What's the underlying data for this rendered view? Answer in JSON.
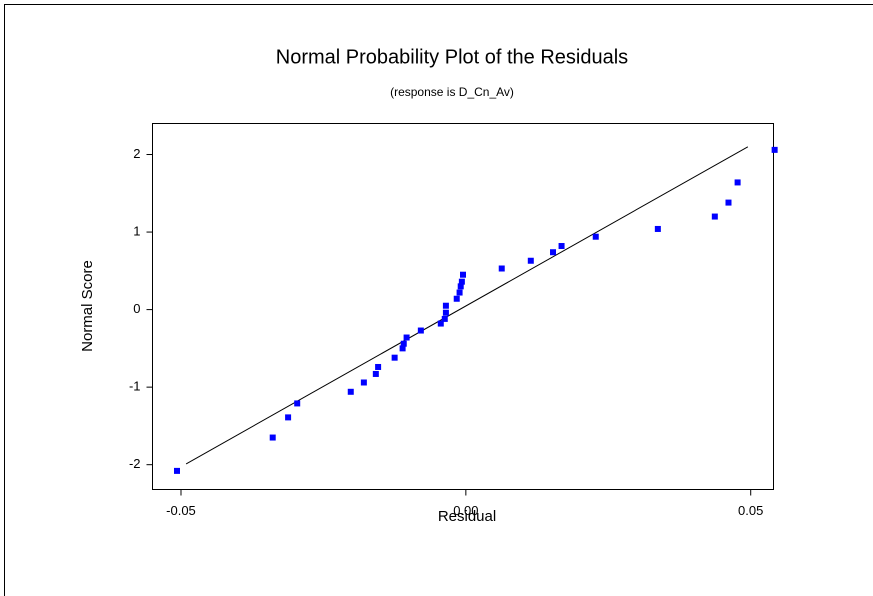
{
  "chart_data": {
    "type": "scatter",
    "title": "Normal Probability Plot of the Residuals",
    "subtitle": "(response is D_Cn_Av)",
    "x_label": "Residual",
    "y_label": "Normal Score",
    "xlim": [
      -0.055,
      0.054
    ],
    "ylim": [
      -2.32,
      2.4
    ],
    "xticks": [
      -0.05,
      {
        "value": 0,
        "label": "0.00"
      },
      0.05
    ],
    "yticks": [
      -2,
      -1,
      0,
      1,
      2
    ],
    "grid": false,
    "series": [
      {
        "color": "#0000ff",
        "x": [
          -0.0507,
          -0.0339,
          -0.0312,
          -0.0296,
          -0.0202,
          -0.0179,
          -0.0158,
          -0.0154,
          -0.0125,
          -0.0111,
          -0.0109,
          -0.0104,
          -0.0079,
          -0.0044,
          -0.0037,
          -0.0035,
          -0.0035,
          -0.0016,
          -0.0011,
          -0.0009,
          -0.0007,
          -0.0005,
          0.0063,
          0.0114,
          0.0153,
          0.0168,
          0.0228,
          0.0337,
          0.0437,
          0.0461,
          0.0477,
          0.0542
        ],
        "values": [
          -2.08,
          -1.65,
          -1.39,
          -1.21,
          -1.06,
          -0.94,
          -0.83,
          -0.74,
          -0.62,
          -0.5,
          -0.44,
          -0.36,
          -0.27,
          -0.18,
          -0.12,
          -0.04,
          0.05,
          0.14,
          0.22,
          0.3,
          0.36,
          0.45,
          0.53,
          0.63,
          0.74,
          0.82,
          0.94,
          1.04,
          1.2,
          1.38,
          1.64,
          2.06
        ]
      }
    ],
    "reference_line": {
      "color": "#000000",
      "x": [
        -0.0491,
        0.0495
      ],
      "values": [
        -1.99,
        2.1
      ]
    }
  }
}
